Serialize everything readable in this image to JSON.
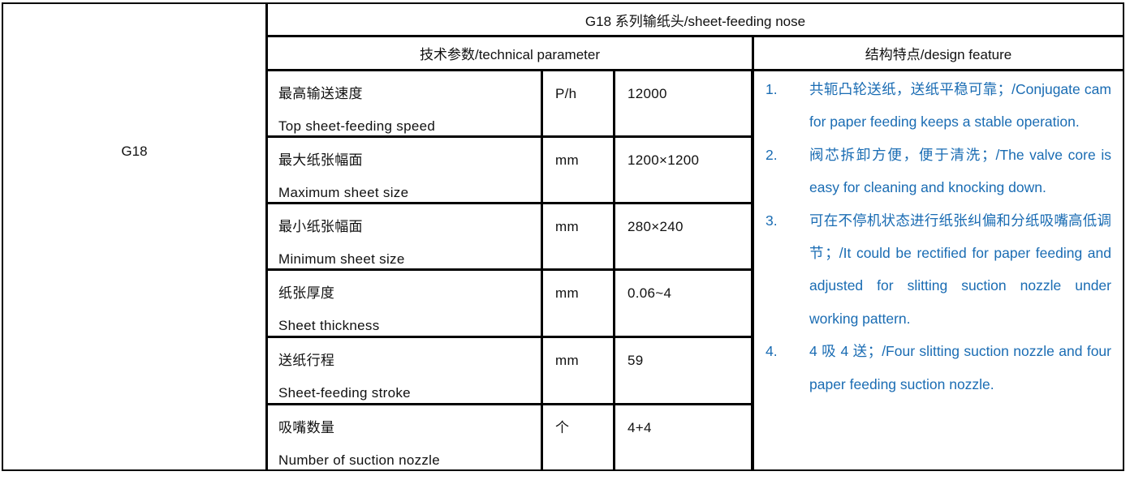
{
  "model": "G18",
  "title": "G18 系列输纸头/sheet-feeding nose",
  "headers": {
    "params": "技术参数/technical parameter",
    "features": "结构特点/design feature"
  },
  "params": [
    {
      "zh": "最高输送速度",
      "en": "Top sheet-feeding speed",
      "unit": "P/h",
      "value": "12000"
    },
    {
      "zh": "最大纸张幅面",
      "en": "Maximum sheet size",
      "unit": "mm",
      "value": "1200×1200"
    },
    {
      "zh": "最小纸张幅面",
      "en": "Minimum sheet size",
      "unit": "mm",
      "value": "280×240"
    },
    {
      "zh": "纸张厚度",
      "en": "Sheet thickness",
      "unit": "mm",
      "value": "0.06~4"
    },
    {
      "zh": "送纸行程",
      "en": "Sheet-feeding stroke",
      "unit": "mm",
      "value": "59"
    },
    {
      "zh": "吸嘴数量",
      "en": "Number of suction nozzle",
      "unit": "个",
      "value": "4+4"
    }
  ],
  "features": [
    {
      "num": "1.",
      "text": "共轭凸轮送纸，送纸平稳可靠；/Conjugate cam for paper feeding keeps a stable operation."
    },
    {
      "num": "2.",
      "text": "阀芯拆卸方便，便于清洗；/The valve core is easy for cleaning and knocking down."
    },
    {
      "num": "3.",
      "text": "可在不停机状态进行纸张纠偏和分纸吸嘴高低调节；/It could be rectified for paper feeding and adjusted for slitting suction nozzle under working pattern."
    },
    {
      "num": "4.",
      "text": "4 吸 4 送；/Four slitting suction nozzle and four paper feeding suction nozzle."
    }
  ],
  "colors": {
    "feature_text": "#1a6cb3",
    "border": "#000000"
  }
}
